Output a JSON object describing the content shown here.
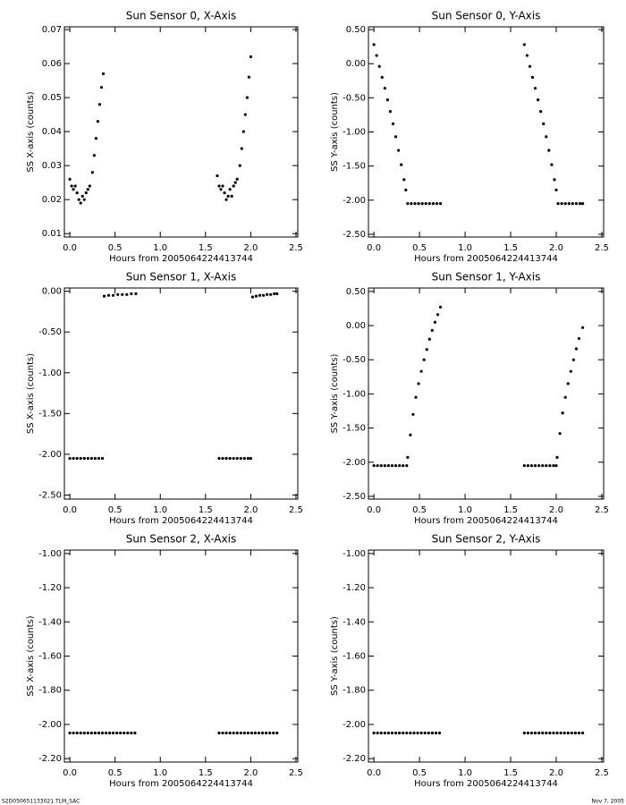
{
  "chart_data": [
    {
      "type": "scatter",
      "title": "Sun Sensor 0, X-Axis",
      "x_label": "Hours from 2005064224413744",
      "y_label": "SS X-axis (counts)",
      "color": "#000000",
      "x": [
        0.0,
        0.02,
        0.04,
        0.06,
        0.08,
        0.1,
        0.12,
        0.14,
        0.16,
        0.18,
        0.2,
        0.22,
        0.25,
        0.27,
        0.29,
        0.31,
        0.33,
        0.35,
        0.37,
        1.63,
        1.65,
        1.67,
        1.69,
        1.71,
        1.73,
        1.75,
        1.77,
        1.79,
        1.81,
        1.83,
        1.85,
        1.88,
        1.9,
        1.92,
        1.94,
        1.96,
        1.98,
        2.0
      ],
      "values": [
        0.026,
        0.024,
        0.023,
        0.024,
        0.022,
        0.02,
        0.019,
        0.021,
        0.02,
        0.022,
        0.023,
        0.024,
        0.028,
        0.033,
        0.038,
        0.043,
        0.048,
        0.053,
        0.057,
        0.027,
        0.024,
        0.023,
        0.024,
        0.022,
        0.02,
        0.021,
        0.023,
        0.021,
        0.024,
        0.025,
        0.026,
        0.03,
        0.035,
        0.04,
        0.045,
        0.05,
        0.056,
        0.062
      ],
      "xlim": [
        -0.06,
        2.52
      ],
      "ylim": [
        0.009,
        0.0708
      ],
      "xticks": [
        {
          "value": 0,
          "label": "0.0"
        },
        0.5,
        {
          "value": 1,
          "label": "1.0"
        },
        1.5,
        {
          "value": 2,
          "label": "2.0"
        },
        2.5
      ],
      "yticks": [
        0.01,
        0.02,
        0.03,
        0.04,
        0.05,
        0.06,
        0.07
      ]
    },
    {
      "type": "scatter",
      "title": "Sun Sensor 0, Y-Axis",
      "x_label": "Hours from 2005064224413744",
      "y_label": "SS Y-axis (counts)",
      "color": "#000000",
      "x": [
        0.0,
        0.03,
        0.06,
        0.09,
        0.12,
        0.15,
        0.18,
        0.21,
        0.24,
        0.27,
        0.3,
        0.33,
        0.35,
        0.37,
        0.41,
        0.45,
        0.49,
        0.53,
        0.57,
        0.61,
        0.65,
        0.69,
        0.73,
        1.65,
        1.68,
        1.71,
        1.74,
        1.77,
        1.8,
        1.83,
        1.86,
        1.89,
        1.92,
        1.95,
        1.98,
        2.0,
        2.02,
        2.06,
        2.1,
        2.14,
        2.18,
        2.22,
        2.26,
        2.29
      ],
      "values": [
        0.28,
        0.12,
        -0.04,
        -0.2,
        -0.36,
        -0.53,
        -0.7,
        -0.88,
        -1.07,
        -1.27,
        -1.48,
        -1.7,
        -1.85,
        -2.05,
        -2.05,
        -2.05,
        -2.05,
        -2.05,
        -2.05,
        -2.05,
        -2.05,
        -2.05,
        -2.05,
        0.28,
        0.12,
        -0.04,
        -0.2,
        -0.36,
        -0.53,
        -0.7,
        -0.88,
        -1.07,
        -1.27,
        -1.48,
        -1.7,
        -1.85,
        -2.05,
        -2.05,
        -2.05,
        -2.05,
        -2.05,
        -2.05,
        -2.05,
        -2.05
      ],
      "xlim": [
        -0.06,
        2.52
      ],
      "ylim": [
        -2.54,
        0.54
      ],
      "xticks": [
        {
          "value": 0,
          "label": "0.0"
        },
        0.5,
        {
          "value": 1,
          "label": "1.0"
        },
        1.5,
        {
          "value": 2,
          "label": "2.0"
        },
        2.5
      ],
      "yticks": [
        {
          "value": 0.5,
          "label": "0.50"
        },
        {
          "value": 0,
          "label": "0.00"
        },
        {
          "value": -0.5,
          "label": "-0.50"
        },
        {
          "value": -1,
          "label": "-1.00"
        },
        {
          "value": -1.5,
          "label": "-1.50"
        },
        {
          "value": -2,
          "label": "-2.00"
        },
        {
          "value": -2.5,
          "label": "-2.50"
        }
      ]
    },
    {
      "type": "scatter",
      "title": "Sun Sensor 1, X-Axis",
      "x_label": "Hours from 2005064224413744",
      "y_label": "SS X-axis (counts)",
      "color": "#000000",
      "x": [
        0.0,
        0.04,
        0.08,
        0.12,
        0.16,
        0.2,
        0.24,
        0.28,
        0.32,
        0.36,
        0.38,
        0.43,
        0.48,
        0.53,
        0.58,
        0.63,
        0.68,
        0.73,
        1.65,
        1.69,
        1.73,
        1.77,
        1.81,
        1.85,
        1.89,
        1.93,
        1.97,
        2.0,
        2.02,
        2.06,
        2.1,
        2.14,
        2.18,
        2.22,
        2.26,
        2.29
      ],
      "values": [
        -2.05,
        -2.05,
        -2.05,
        -2.05,
        -2.05,
        -2.05,
        -2.05,
        -2.05,
        -2.05,
        -2.05,
        -0.06,
        -0.05,
        -0.05,
        -0.04,
        -0.04,
        -0.04,
        -0.03,
        -0.03,
        -2.05,
        -2.05,
        -2.05,
        -2.05,
        -2.05,
        -2.05,
        -2.05,
        -2.05,
        -2.05,
        -2.05,
        -0.07,
        -0.06,
        -0.05,
        -0.05,
        -0.04,
        -0.04,
        -0.03,
        -0.03
      ],
      "xlim": [
        -0.06,
        2.52
      ],
      "ylim": [
        -2.55,
        0.04
      ],
      "xticks": [
        {
          "value": 0,
          "label": "0.0"
        },
        0.5,
        {
          "value": 1,
          "label": "1.0"
        },
        1.5,
        {
          "value": 2,
          "label": "2.0"
        },
        2.5
      ],
      "yticks": [
        {
          "value": 0,
          "label": "0.00"
        },
        {
          "value": -0.5,
          "label": "-0.50"
        },
        {
          "value": -1,
          "label": "-1.00"
        },
        {
          "value": -1.5,
          "label": "-1.50"
        },
        {
          "value": -2,
          "label": "-2.00"
        },
        {
          "value": -2.5,
          "label": "-2.50"
        }
      ]
    },
    {
      "type": "scatter",
      "title": "Sun Sensor 1, Y-Axis",
      "x_label": "Hours from 2005064224413744",
      "y_label": "SS Y-axis (counts)",
      "color": "#000000",
      "x": [
        0.0,
        0.04,
        0.08,
        0.12,
        0.16,
        0.2,
        0.24,
        0.28,
        0.32,
        0.36,
        0.37,
        0.4,
        0.43,
        0.46,
        0.49,
        0.52,
        0.55,
        0.58,
        0.61,
        0.64,
        0.67,
        0.7,
        0.73,
        1.65,
        1.69,
        1.73,
        1.77,
        1.81,
        1.85,
        1.89,
        1.93,
        1.97,
        2.0,
        2.01,
        2.04,
        2.07,
        2.1,
        2.13,
        2.16,
        2.19,
        2.22,
        2.25,
        2.29
      ],
      "values": [
        -2.05,
        -2.05,
        -2.05,
        -2.05,
        -2.05,
        -2.05,
        -2.05,
        -2.05,
        -2.05,
        -2.05,
        -1.93,
        -1.6,
        -1.3,
        -1.05,
        -0.85,
        -0.67,
        -0.5,
        -0.35,
        -0.2,
        -0.07,
        0.05,
        0.16,
        0.27,
        -2.05,
        -2.05,
        -2.05,
        -2.05,
        -2.05,
        -2.05,
        -2.05,
        -2.05,
        -2.05,
        -2.05,
        -1.93,
        -1.58,
        -1.28,
        -1.05,
        -0.85,
        -0.67,
        -0.5,
        -0.34,
        -0.19,
        -0.03
      ],
      "xlim": [
        -0.06,
        2.52
      ],
      "ylim": [
        -2.54,
        0.55
      ],
      "xticks": [
        {
          "value": 0,
          "label": "0.0"
        },
        0.5,
        {
          "value": 1,
          "label": "1.0"
        },
        1.5,
        {
          "value": 2,
          "label": "2.0"
        },
        2.5
      ],
      "yticks": [
        {
          "value": 0.5,
          "label": "0.50"
        },
        {
          "value": 0,
          "label": "0.00"
        },
        {
          "value": -0.5,
          "label": "-0.50"
        },
        {
          "value": -1,
          "label": "-1.00"
        },
        {
          "value": -1.5,
          "label": "-1.50"
        },
        {
          "value": -2,
          "label": "-2.00"
        },
        {
          "value": -2.5,
          "label": "-2.50"
        }
      ]
    },
    {
      "type": "scatter",
      "title": "Sun Sensor 2, X-Axis",
      "x_label": "Hours from 2005064224413744",
      "y_label": "SS X-axis (counts)",
      "color": "#000000",
      "x": [
        0.0,
        0.04,
        0.08,
        0.12,
        0.16,
        0.2,
        0.24,
        0.28,
        0.32,
        0.36,
        0.4,
        0.44,
        0.48,
        0.52,
        0.56,
        0.6,
        0.64,
        0.68,
        0.72,
        1.65,
        1.69,
        1.73,
        1.77,
        1.81,
        1.85,
        1.89,
        1.93,
        1.97,
        2.01,
        2.05,
        2.09,
        2.13,
        2.17,
        2.21,
        2.25,
        2.29
      ],
      "values": [
        -2.05,
        -2.05,
        -2.05,
        -2.05,
        -2.05,
        -2.05,
        -2.05,
        -2.05,
        -2.05,
        -2.05,
        -2.05,
        -2.05,
        -2.05,
        -2.05,
        -2.05,
        -2.05,
        -2.05,
        -2.05,
        -2.05,
        -2.05,
        -2.05,
        -2.05,
        -2.05,
        -2.05,
        -2.05,
        -2.05,
        -2.05,
        -2.05,
        -2.05,
        -2.05,
        -2.05,
        -2.05,
        -2.05,
        -2.05,
        -2.05,
        -2.05
      ],
      "xlim": [
        -0.06,
        2.52
      ],
      "ylim": [
        -2.22,
        -0.98
      ],
      "xticks": [
        {
          "value": 0,
          "label": "0.0"
        },
        0.5,
        {
          "value": 1,
          "label": "1.0"
        },
        1.5,
        {
          "value": 2,
          "label": "2.0"
        },
        2.5
      ],
      "yticks": [
        {
          "value": -1,
          "label": "-1.00"
        },
        {
          "value": -1.2,
          "label": "-1.20"
        },
        {
          "value": -1.4,
          "label": "-1.40"
        },
        {
          "value": -1.6,
          "label": "-1.60"
        },
        {
          "value": -1.8,
          "label": "-1.80"
        },
        {
          "value": -2,
          "label": "-2.00"
        },
        {
          "value": -2.2,
          "label": "-2.20"
        }
      ]
    },
    {
      "type": "scatter",
      "title": "Sun Sensor 2, Y-Axis",
      "x_label": "Hours from 2005064224413744",
      "y_label": "SS Y-axis (counts)",
      "color": "#000000",
      "x": [
        0.0,
        0.04,
        0.08,
        0.12,
        0.16,
        0.2,
        0.24,
        0.28,
        0.32,
        0.36,
        0.4,
        0.44,
        0.48,
        0.52,
        0.56,
        0.6,
        0.64,
        0.68,
        0.72,
        1.65,
        1.69,
        1.73,
        1.77,
        1.81,
        1.85,
        1.89,
        1.93,
        1.97,
        2.01,
        2.05,
        2.09,
        2.13,
        2.17,
        2.21,
        2.25,
        2.29
      ],
      "values": [
        -2.05,
        -2.05,
        -2.05,
        -2.05,
        -2.05,
        -2.05,
        -2.05,
        -2.05,
        -2.05,
        -2.05,
        -2.05,
        -2.05,
        -2.05,
        -2.05,
        -2.05,
        -2.05,
        -2.05,
        -2.05,
        -2.05,
        -2.05,
        -2.05,
        -2.05,
        -2.05,
        -2.05,
        -2.05,
        -2.05,
        -2.05,
        -2.05,
        -2.05,
        -2.05,
        -2.05,
        -2.05,
        -2.05,
        -2.05,
        -2.05,
        -2.05
      ],
      "xlim": [
        -0.06,
        2.52
      ],
      "ylim": [
        -2.22,
        -0.98
      ],
      "xticks": [
        {
          "value": 0,
          "label": "0.0"
        },
        0.5,
        {
          "value": 1,
          "label": "1.0"
        },
        1.5,
        {
          "value": 2,
          "label": "2.0"
        },
        2.5
      ],
      "yticks": [
        {
          "value": -1,
          "label": "-1.00"
        },
        {
          "value": -1.2,
          "label": "-1.20"
        },
        {
          "value": -1.4,
          "label": "-1.40"
        },
        {
          "value": -1.6,
          "label": "-1.60"
        },
        {
          "value": -1.8,
          "label": "-1.80"
        },
        {
          "value": -2,
          "label": "-2.00"
        },
        {
          "value": -2.2,
          "label": "-2.20"
        }
      ]
    }
  ],
  "footer": {
    "left": "S2D050651133021.TLM_SAC",
    "right": "Nov  7, 2005"
  }
}
